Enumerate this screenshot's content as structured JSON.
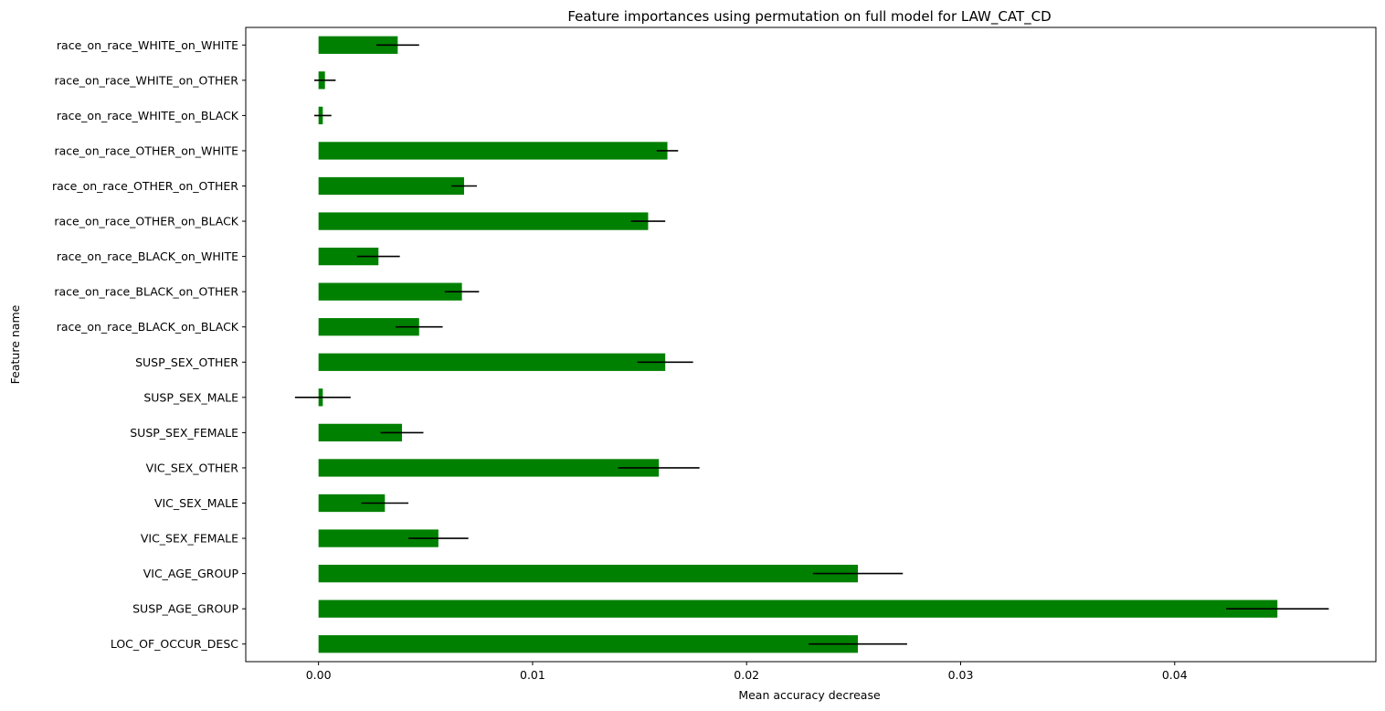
{
  "chart_data": {
    "type": "bar",
    "orientation": "horizontal",
    "title": "Feature importances using permutation on full model for LAW_CAT_CD",
    "xlabel": "Mean accuracy decrease",
    "ylabel": "Feature name",
    "xlim": [
      -0.0034,
      0.0494
    ],
    "xticks": [
      0.0,
      0.01,
      0.02,
      0.03,
      0.04
    ],
    "xtick_labels": [
      "0.00",
      "0.01",
      "0.02",
      "0.03",
      "0.04"
    ],
    "bar_color": "#008000",
    "error_color": "#000000",
    "grid": false,
    "categories": [
      "race_on_race_WHITE_on_WHITE",
      "race_on_race_WHITE_on_OTHER",
      "race_on_race_WHITE_on_BLACK",
      "race_on_race_OTHER_on_WHITE",
      "race_on_race_OTHER_on_OTHER",
      "race_on_race_OTHER_on_BLACK",
      "race_on_race_BLACK_on_WHITE",
      "race_on_race_BLACK_on_OTHER",
      "race_on_race_BLACK_on_BLACK",
      "SUSP_SEX_OTHER",
      "SUSP_SEX_MALE",
      "SUSP_SEX_FEMALE",
      "VIC_SEX_OTHER",
      "VIC_SEX_MALE",
      "VIC_SEX_FEMALE",
      "VIC_AGE_GROUP",
      "SUSP_AGE_GROUP",
      "LOC_OF_OCCUR_DESC"
    ],
    "values": [
      0.0037,
      0.0003,
      0.0002,
      0.0163,
      0.0068,
      0.0154,
      0.0028,
      0.0067,
      0.0047,
      0.0162,
      0.0002,
      0.0039,
      0.0159,
      0.0031,
      0.0056,
      0.0252,
      0.0448,
      0.0252
    ],
    "errors": [
      0.001,
      0.0005,
      0.0004,
      0.0005,
      0.0006,
      0.0008,
      0.001,
      0.0008,
      0.0011,
      0.0013,
      0.0013,
      0.001,
      0.0019,
      0.0011,
      0.0014,
      0.0021,
      0.0024,
      0.0023
    ]
  }
}
